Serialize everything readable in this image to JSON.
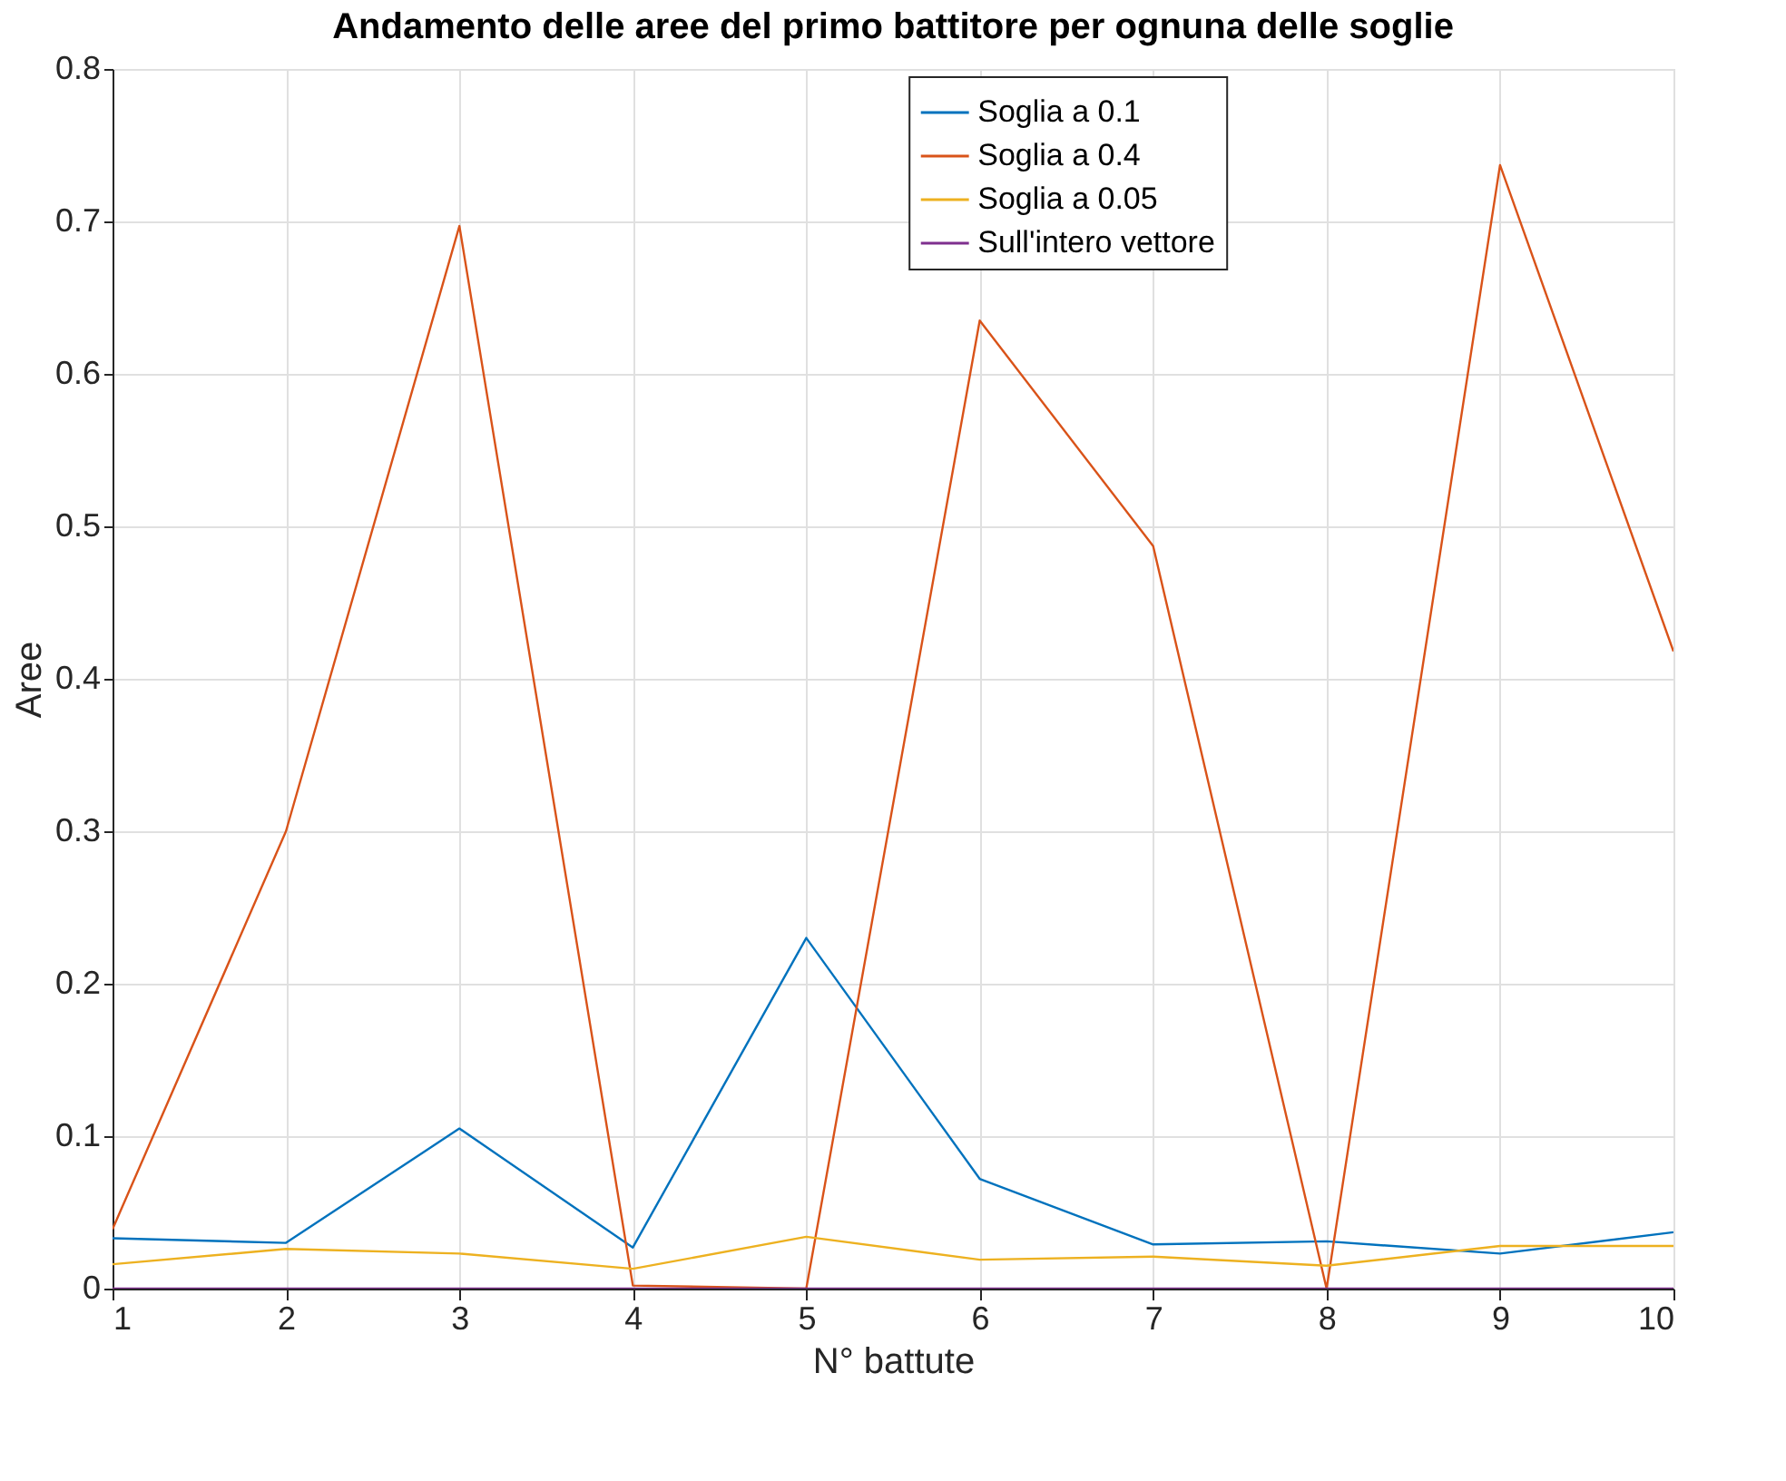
{
  "chart_data": {
    "type": "line",
    "title": "Andamento delle aree del primo battitore per ognuna delle soglie",
    "xlabel": "N° battute",
    "ylabel": "Aree",
    "x": [
      1,
      2,
      3,
      4,
      5,
      6,
      7,
      8,
      9,
      10
    ],
    "series": [
      {
        "name": "Soglia a 0.1",
        "color": "#0072bd",
        "values": [
          0.033,
          0.03,
          0.105,
          0.027,
          0.23,
          0.072,
          0.029,
          0.031,
          0.023,
          0.037
        ]
      },
      {
        "name": "Soglia a 0.4",
        "color": "#d95319",
        "values": [
          0.039,
          0.3,
          0.697,
          0.002,
          0,
          0.635,
          0.487,
          0,
          0.737,
          0.418
        ]
      },
      {
        "name": "Soglia a 0.05",
        "color": "#edb120",
        "values": [
          0.016,
          0.026,
          0.023,
          0.013,
          0.034,
          0.019,
          0.021,
          0.015,
          0.028,
          0.028
        ]
      },
      {
        "name": "Sull'intero vettore",
        "color": "#7e2f8e",
        "values": [
          0,
          0,
          0,
          0,
          0,
          0,
          0,
          0,
          0,
          0
        ]
      }
    ],
    "xlim": [
      1,
      10
    ],
    "xticks": [
      1,
      2,
      3,
      4,
      5,
      6,
      7,
      8,
      9,
      10
    ],
    "ylim": [
      0,
      0.8
    ],
    "yticks": [
      0,
      0.1,
      0.2,
      0.3,
      0.4,
      0.5,
      0.6,
      0.7,
      0.8
    ],
    "grid": true,
    "legend": "top right",
    "marker": "none",
    "line_style": "solid"
  }
}
